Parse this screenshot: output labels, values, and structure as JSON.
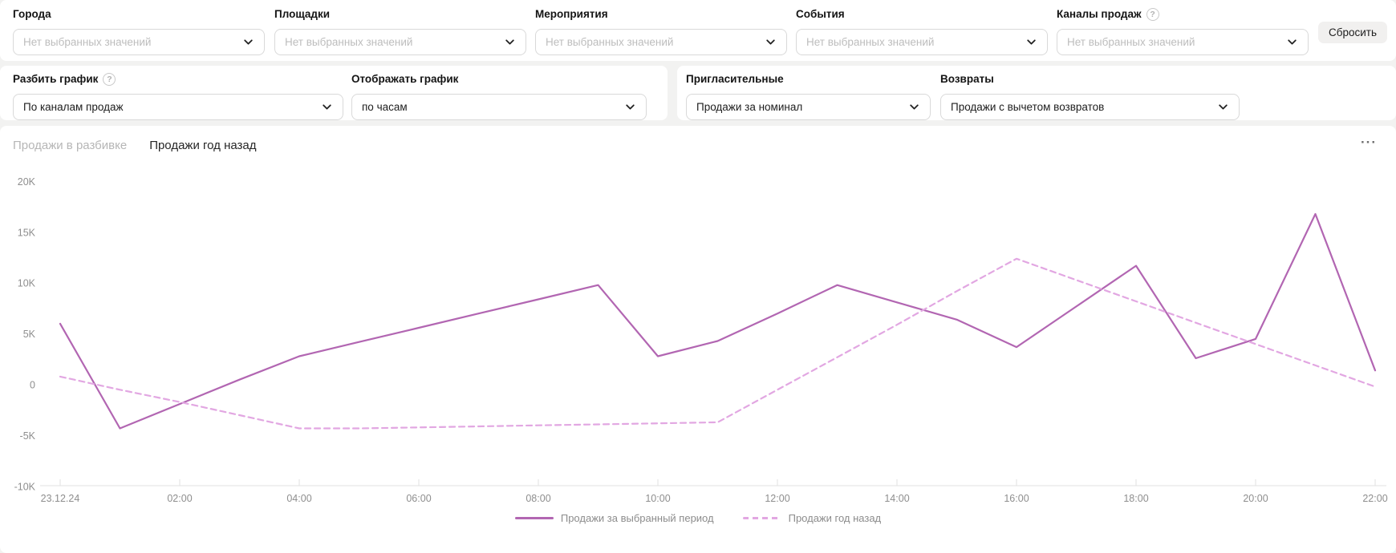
{
  "icons": {
    "question": "?",
    "more_menu": "···"
  },
  "filters": {
    "cities": {
      "label": "Города",
      "placeholder": "Нет выбранных значений"
    },
    "venues": {
      "label": "Площадки",
      "placeholder": "Нет выбранных значений"
    },
    "activities": {
      "label": "Мероприятия",
      "placeholder": "Нет выбранных значений"
    },
    "events": {
      "label": "События",
      "placeholder": "Нет выбранных значений"
    },
    "channels": {
      "label": "Каналы продаж",
      "placeholder": "Нет выбранных значений"
    },
    "reset_button": "Сбросить"
  },
  "controls": {
    "split": {
      "label": "Разбить график",
      "value": "По каналам продаж"
    },
    "display": {
      "label": "Отображать график",
      "value": "по часам"
    },
    "invites": {
      "label": "Пригласительные",
      "value": "Продажи за номинал"
    },
    "returns": {
      "label": "Возвраты",
      "value": "Продажи с вычетом возвратов"
    }
  },
  "chart_card": {
    "tabs": [
      {
        "label": "Продажи в разбивке",
        "active": false
      },
      {
        "label": "Продажи год назад",
        "active": true
      }
    ]
  },
  "chart_data": {
    "type": "line",
    "title": "",
    "xlabel": "",
    "ylabel": "",
    "ylim": [
      -10000,
      20000
    ],
    "grid": false,
    "legend_position": "bottom-center",
    "categories": [
      "23.12.24",
      "01:00",
      "02:00",
      "03:00",
      "04:00",
      "05:00",
      "06:00",
      "07:00",
      "08:00",
      "09:00",
      "10:00",
      "11:00",
      "12:00",
      "13:00",
      "14:00",
      "15:00",
      "16:00",
      "17:00",
      "18:00",
      "19:00",
      "20:00",
      "21:00",
      "22:00"
    ],
    "x_tick_labels": [
      "23.12.24",
      "02:00",
      "04:00",
      "06:00",
      "08:00",
      "10:00",
      "12:00",
      "14:00",
      "16:00",
      "18:00",
      "20:00",
      "22:00"
    ],
    "y_ticks": [
      {
        "value": 20000,
        "label": "20K"
      },
      {
        "value": 15000,
        "label": "15K"
      },
      {
        "value": 10000,
        "label": "10K"
      },
      {
        "value": 5000,
        "label": "5K"
      },
      {
        "value": 0,
        "label": "0"
      },
      {
        "value": -5000,
        "label": "-5K"
      },
      {
        "value": -10000,
        "label": "-10K"
      }
    ],
    "series": [
      {
        "name": "Продажи за выбранный период",
        "style": "solid",
        "color": "#b266b2",
        "values": [
          6000,
          -4300,
          -1900,
          500,
          2800,
          4200,
          5600,
          7000,
          8400,
          9800,
          2800,
          4300,
          7000,
          9800,
          8100,
          6400,
          3700,
          7700,
          11700,
          2600,
          4500,
          16800,
          1400
        ]
      },
      {
        "name": "Продажи год назад",
        "style": "dashed",
        "color": "#e2a7e2",
        "values": [
          800,
          -500,
          -1700,
          -3000,
          -4300,
          -4300,
          -4200,
          -4100,
          -4000,
          -3900,
          -3800,
          -3700,
          -500,
          2700,
          5900,
          9200,
          12400,
          10300,
          8200,
          6100,
          4000,
          1900,
          -200
        ]
      }
    ]
  }
}
